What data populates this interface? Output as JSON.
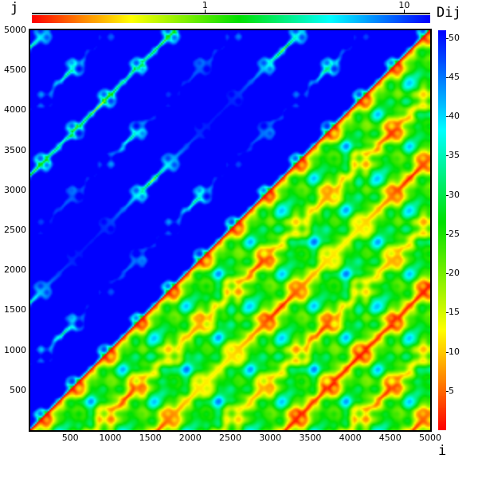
{
  "chart_data": {
    "type": "heatmap",
    "title": "",
    "xlabel": "i",
    "ylabel": "j",
    "xlim": [
      0,
      5000
    ],
    "ylim": [
      0,
      5000
    ],
    "x_ticks": [
      "500",
      "1000",
      "1500",
      "2000",
      "2500",
      "3000",
      "3500",
      "4000",
      "4500",
      "5000"
    ],
    "y_ticks": [
      "500",
      "1000",
      "1500",
      "2000",
      "2500",
      "3000",
      "3500",
      "4000",
      "4500",
      "5000"
    ],
    "grid": false,
    "upper_triangle_scale": "log",
    "lower_triangle_scale": "linear",
    "colormap": [
      "#ff0000",
      "#ff8000",
      "#ffff00",
      "#00e000",
      "#00ffff",
      "#0000ff"
    ],
    "colorbar_right": {
      "label": "Dij",
      "range": [
        0,
        51
      ],
      "ticks": [
        "5",
        "10",
        "15",
        "20",
        "25",
        "30",
        "35",
        "40",
        "45",
        "50"
      ],
      "scale": "linear"
    },
    "colorbar_top": {
      "range": [
        0.135,
        13.5
      ],
      "ticks": [
        "1",
        "10"
      ],
      "scale": "log"
    }
  }
}
